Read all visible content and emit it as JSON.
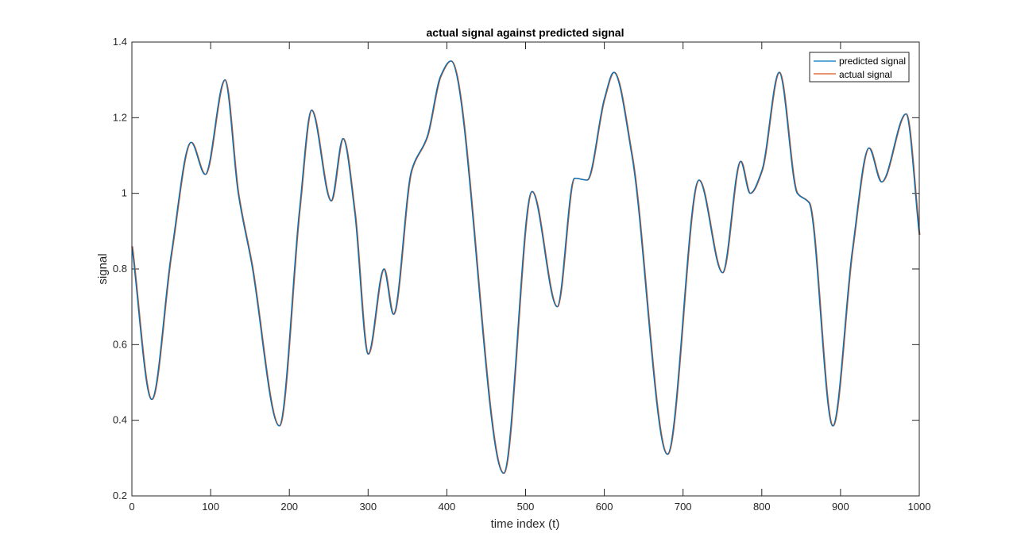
{
  "chart_data": {
    "type": "line",
    "title": "actual signal against predicted signal",
    "xlabel": "time index (t)",
    "ylabel": "signal",
    "xlim": [
      0,
      1000
    ],
    "ylim": [
      0.2,
      1.4
    ],
    "xticks": [
      0,
      100,
      200,
      300,
      400,
      500,
      600,
      700,
      800,
      900,
      1000
    ],
    "yticks": [
      0.2,
      0.4,
      0.6,
      0.8,
      1,
      1.2,
      1.4
    ],
    "grid": false,
    "legend": "top-right",
    "series": [
      {
        "name": "predicted signal",
        "color": "#0072BD",
        "x": [
          0,
          25,
          50,
          75,
          93,
          118,
          135,
          152,
          187,
          213,
          228,
          253,
          268,
          283,
          300,
          320,
          332,
          355,
          375,
          392,
          405,
          472,
          508,
          540,
          562,
          578,
          600,
          612,
          635,
          680,
          720,
          750,
          773,
          785,
          800,
          822,
          845,
          860,
          890,
          915,
          936,
          952,
          983,
          1000
        ],
        "y": [
          0.86,
          0.455,
          0.84,
          1.135,
          1.05,
          1.3,
          1.0,
          0.815,
          0.385,
          0.96,
          1.22,
          0.98,
          1.145,
          0.95,
          0.575,
          0.8,
          0.68,
          1.06,
          1.15,
          1.31,
          1.35,
          0.26,
          1.005,
          0.7,
          1.04,
          1.035,
          1.25,
          1.32,
          1.1,
          0.31,
          1.035,
          0.79,
          1.085,
          1.0,
          1.06,
          1.32,
          1.0,
          0.975,
          0.385,
          0.85,
          1.12,
          1.03,
          1.21,
          0.89
        ]
      },
      {
        "name": "actual signal",
        "color": "#D95319",
        "x": [
          0,
          25,
          50,
          75,
          93,
          118,
          135,
          152,
          187,
          213,
          228,
          253,
          268,
          283,
          300,
          320,
          332,
          355,
          375,
          392,
          405,
          472,
          508,
          540,
          562,
          578,
          600,
          612,
          635,
          680,
          720,
          750,
          773,
          785,
          800,
          822,
          845,
          860,
          890,
          915,
          936,
          952,
          983,
          1000
        ],
        "y": [
          0.86,
          0.455,
          0.84,
          1.135,
          1.05,
          1.3,
          1.0,
          0.815,
          0.385,
          0.96,
          1.22,
          0.98,
          1.145,
          0.95,
          0.575,
          0.8,
          0.68,
          1.06,
          1.15,
          1.31,
          1.35,
          0.26,
          1.005,
          0.7,
          1.04,
          1.035,
          1.25,
          1.32,
          1.1,
          0.31,
          1.035,
          0.79,
          1.085,
          1.0,
          1.06,
          1.32,
          1.0,
          0.975,
          0.385,
          0.85,
          1.12,
          1.03,
          1.21,
          0.89
        ]
      }
    ]
  }
}
